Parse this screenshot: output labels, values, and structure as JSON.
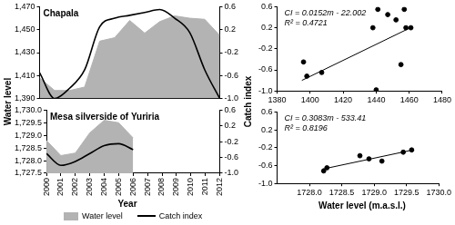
{
  "chart_data": [
    {
      "type": "line",
      "title": "Chapala",
      "x": [
        2000,
        2001,
        2002,
        2003,
        2004,
        2005,
        2006,
        2007,
        2008,
        2009,
        2010,
        2011,
        2012
      ],
      "series": [
        {
          "name": "Water level",
          "type": "area",
          "color": "#b3b3b3",
          "values": [
            1408,
            1397,
            1397,
            1400,
            1440,
            1443,
            1458,
            1447,
            1457,
            1462,
            1460,
            1459,
            1445
          ]
        },
        {
          "name": "Catch index",
          "type": "line",
          "color": "#000000",
          "axis": "y2",
          "line_style": "solid",
          "values": [
            -0.55,
            -1.0,
            -0.82,
            -0.5,
            0.25,
            0.4,
            0.45,
            0.5,
            0.55,
            0.4,
            0.15,
            -0.5,
            -1.0
          ]
        }
      ],
      "xlim": [
        2000,
        2012
      ],
      "ylim": [
        1390,
        1470
      ],
      "yticks": [
        {
          "value": 1390,
          "label": "1,390"
        },
        {
          "value": 1410,
          "label": "1,410"
        },
        {
          "value": 1430,
          "label": "1,430"
        },
        {
          "value": 1450,
          "label": "1,450"
        },
        {
          "value": 1470,
          "label": "1,470"
        }
      ],
      "y2lim": [
        -1,
        0.6
      ],
      "y2ticks": [
        {
          "value": -1,
          "label": "-1.0"
        },
        -0.6,
        -0.2,
        0.2,
        0.6
      ],
      "grid": false,
      "legend": "bottom"
    },
    {
      "type": "line",
      "title": "Mesa silverside of Yuriria",
      "x": [
        2000,
        2001,
        2002,
        2003,
        2004,
        2005,
        2006
      ],
      "series": [
        {
          "name": "Water level",
          "type": "area",
          "color": "#b3b3b3",
          "values": [
            1728.8,
            1728.2,
            1728.3,
            1729.1,
            1729.6,
            1729.5,
            1728.9
          ]
        },
        {
          "name": "Catch index",
          "type": "line",
          "color": "#000000",
          "axis": "y2",
          "line_style": "solid",
          "values": [
            -0.5,
            -0.8,
            -0.7,
            -0.5,
            -0.3,
            -0.25,
            -0.4
          ]
        }
      ],
      "xlabel": "Year",
      "xlim": [
        2000,
        2012
      ],
      "xticks": [
        2000,
        2001,
        2002,
        2003,
        2004,
        2005,
        2006,
        2007,
        2008,
        2009,
        2010,
        2011,
        2012
      ],
      "ylim": [
        1727.5,
        1730
      ],
      "yticks": [
        {
          "value": 1727.5,
          "label": "1,727.5"
        },
        {
          "value": 1728,
          "label": "1,728.0"
        },
        {
          "value": 1728.5,
          "label": "1,728.5"
        },
        {
          "value": 1729,
          "label": "1,729.0"
        },
        {
          "value": 1729.5,
          "label": "1,729.5"
        },
        {
          "value": 1730,
          "label": "1,730.0"
        }
      ],
      "y2lim": [
        -1,
        0.6
      ],
      "y2ticks": [
        {
          "value": -1,
          "label": "-1.0"
        },
        -0.6,
        -0.2,
        0.2,
        0.6
      ],
      "grid": false
    },
    {
      "type": "scatter",
      "color": "#000000",
      "marker": "circle",
      "x": [
        1396,
        1398,
        1407,
        1438,
        1441,
        1440,
        1447,
        1452,
        1455,
        1457,
        1458,
        1461
      ],
      "values": [
        -0.45,
        -0.72,
        -0.65,
        0.2,
        0.55,
        -0.98,
        0.45,
        0.35,
        -0.5,
        0.55,
        0.2,
        0.2
      ],
      "trend": {
        "x": [
          1395,
          1462
        ],
        "values": [
          -0.8,
          0.22
        ]
      },
      "annotations": [
        "CI = 0.0152m - 22.002",
        "R² = 0.4721"
      ],
      "xlim": [
        1380,
        1480
      ],
      "xticks": [
        1380,
        1400,
        1420,
        1440,
        1460,
        1480
      ],
      "ylim": [
        -1,
        0.6
      ],
      "yticks": [
        {
          "value": -1,
          "label": "-1.0"
        },
        -0.6,
        -0.2,
        0.2,
        0.6
      ],
      "grid": false
    },
    {
      "type": "scatter",
      "color": "#000000",
      "marker": "circle",
      "x": [
        1728.22,
        1728.27,
        1728.78,
        1728.92,
        1729.12,
        1729.45,
        1729.58
      ],
      "values": [
        -0.72,
        -0.65,
        -0.38,
        -0.45,
        -0.5,
        -0.3,
        -0.25
      ],
      "trend": {
        "x": [
          1728.2,
          1729.6
        ],
        "values": [
          -0.68,
          -0.25
        ]
      },
      "annotations": [
        "CI = 0.3083m - 533.41",
        "R² = 0.8196"
      ],
      "xlabel": "Water level (m.a.s.l.)",
      "xlim": [
        1727.5,
        1730
      ],
      "xticks": [
        {
          "value": 1728,
          "label": "1728.0"
        },
        {
          "value": 1728.5,
          "label": "1728.5"
        },
        {
          "value": 1729,
          "label": "1729.0"
        },
        {
          "value": 1729.5,
          "label": "1729.5"
        },
        {
          "value": 1730,
          "label": "1730.0"
        }
      ],
      "ylim": [
        -1,
        0.6
      ],
      "yticks": [
        {
          "value": -1,
          "label": "-1.0"
        },
        -0.6,
        -0.2,
        0.2,
        0.6
      ],
      "grid": false
    }
  ],
  "axis_titles": {
    "left": "Water level",
    "right": "Catch index"
  }
}
